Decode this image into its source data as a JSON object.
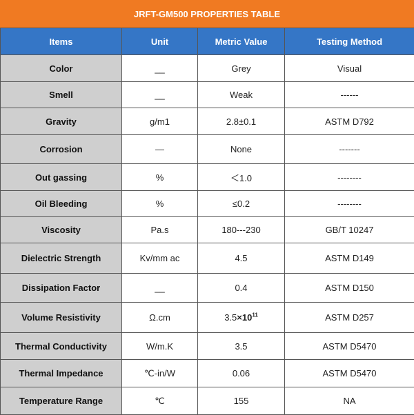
{
  "title": "JRFT-GM500    PROPERTIES  TABLE",
  "columns": [
    "Items",
    "Unit",
    "Metric Value",
    "Testing Method"
  ],
  "rows": [
    {
      "item": "Color",
      "unit": "__",
      "value": "Grey",
      "method": "Visual"
    },
    {
      "item": "Smell",
      "unit": "__",
      "value": "Weak",
      "method": "------"
    },
    {
      "item": "Gravity",
      "unit": "g/m1",
      "value": "2.8±0.1",
      "method": "ASTM D792"
    },
    {
      "item": "Corrosion",
      "unit": "—",
      "value": "None",
      "method": "-------"
    },
    {
      "item": "Out gassing",
      "unit": "%",
      "value": "＜1.0",
      "method": "--------"
    },
    {
      "item": "Oil Bleeding",
      "unit": "%",
      "value": "≤0.2",
      "method": "--------"
    },
    {
      "item": "Viscosity",
      "unit": "Pa.s",
      "value": "180---230",
      "method": "GB/T 10247"
    },
    {
      "item": "Dielectric Strength",
      "unit": "Kv/mm ac",
      "value": "4.5",
      "method": "ASTM D149"
    },
    {
      "item": "Dissipation Factor",
      "unit": "__",
      "value": "0.4",
      "method": "ASTM D150"
    },
    {
      "item": "Volume Resistivity",
      "unit": "Ω.cm",
      "value_base": "3.5",
      "value_mult": "×10",
      "value_exp": "11",
      "method": "ASTM D257"
    },
    {
      "item": "Thermal Conductivity",
      "unit": "W/m.K",
      "value": "3.5",
      "method": "ASTM D5470"
    },
    {
      "item": "Thermal Impedance",
      "unit": "℃-in/W",
      "value": "0.06",
      "method": "ASTM D5470"
    },
    {
      "item": "Temperature Range",
      "unit": "℃",
      "value": "155",
      "method": "NA"
    }
  ]
}
